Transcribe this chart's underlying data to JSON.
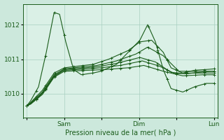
{
  "bg_color": "#cce8dc",
  "plot_bg_color": "#daf0e6",
  "grid_color": "#a8cfc0",
  "line_color": "#1a5c1a",
  "ylabel_ticks": [
    1010,
    1011,
    1012
  ],
  "xlabel": "Pression niveau de la mer( hPa )",
  "xtick_labels": [
    "",
    "Sam",
    "",
    "Dim",
    "",
    "Lun"
  ],
  "xtick_positions": [
    0,
    48,
    96,
    144,
    192,
    240
  ],
  "ylim": [
    1009.3,
    1012.6
  ],
  "xlim": [
    -5,
    245
  ],
  "line_width": 0.8,
  "marker_size": 2.0
}
